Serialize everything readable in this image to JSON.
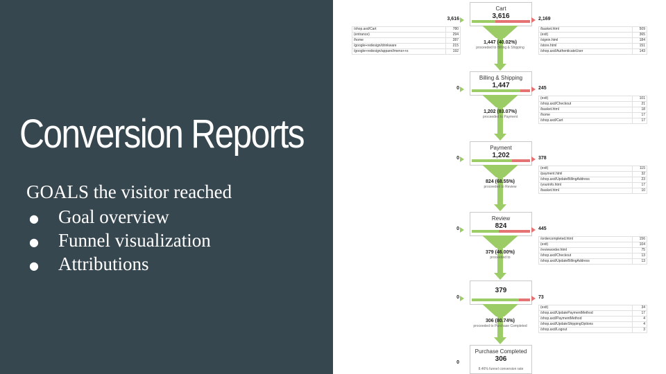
{
  "slide": {
    "title": "Conversion Reports",
    "intro": "GOALS the visitor reached",
    "bullets": [
      "Goal overview",
      "Funnel visualization",
      "Attributions"
    ]
  },
  "colors": {
    "panel": "#37474f",
    "proceed": "#9ccc65",
    "exit": "#e57373"
  },
  "funnel": {
    "steps": [
      {
        "name": "Cart",
        "count": "3,616",
        "entrances": "3,616",
        "exits": "2,169",
        "proceed_fraction": 0.4,
        "progress": "1,447 (40.02%)",
        "progress_label": "proceeded to Billing & Shipping",
        "entrance_sources": [
          {
            "page": "/shop.axd/Cart",
            "value": "780"
          },
          {
            "page": "(entrance)",
            "value": "294"
          },
          {
            "page": "/home",
            "value": "287"
          },
          {
            "page": "/google+redesign/drinkware",
            "value": "215"
          },
          {
            "page": "/google+redesign/apparel/mens++s",
            "value": "192"
          }
        ],
        "exit_destinations": [
          {
            "page": "/basket.html",
            "value": "509"
          },
          {
            "page": "(exit)",
            "value": "365"
          },
          {
            "page": "/signin.html",
            "value": "184"
          },
          {
            "page": "/store.html",
            "value": "151"
          },
          {
            "page": "/shop.axd/AuthenticateUser",
            "value": "143"
          }
        ]
      },
      {
        "name": "Billing & Shipping",
        "count": "1,447",
        "entrances": "0",
        "exits": "245",
        "proceed_fraction": 0.83,
        "progress": "1,202 (83.07%)",
        "progress_label": "proceeded to Payment",
        "entrance_sources": [],
        "exit_destinations": [
          {
            "page": "(exit)",
            "value": "101"
          },
          {
            "page": "/shop.axd/Checkout",
            "value": "21"
          },
          {
            "page": "/basket.html",
            "value": "18"
          },
          {
            "page": "/home",
            "value": "17"
          },
          {
            "page": "/shop.axd/Cart",
            "value": "17"
          }
        ]
      },
      {
        "name": "Payment",
        "count": "1,202",
        "entrances": "0",
        "exits": "378",
        "proceed_fraction": 0.69,
        "progress": "824 (68.55%)",
        "progress_label": "proceeded to Review",
        "entrance_sources": [],
        "exit_destinations": [
          {
            "page": "(exit)",
            "value": "115"
          },
          {
            "page": "/payment.html",
            "value": "32"
          },
          {
            "page": "/shop.axd/UpdateBillingAddress",
            "value": "23"
          },
          {
            "page": "/yourinfo.html",
            "value": "17"
          },
          {
            "page": "/basket.html",
            "value": "10"
          }
        ]
      },
      {
        "name": "Review",
        "count": "824",
        "entrances": "0",
        "exits": "445",
        "proceed_fraction": 0.46,
        "progress": "379 (46.00%)",
        "progress_label": "proceeded to",
        "entrance_sources": [],
        "exit_destinations": [
          {
            "page": "/ordercompleted.html",
            "value": "156"
          },
          {
            "page": "(exit)",
            "value": "104"
          },
          {
            "page": "/revieworder.html",
            "value": "75"
          },
          {
            "page": "/shop.axd/Checkout",
            "value": "13"
          },
          {
            "page": "/shop.axd/UpdateBillingAddress",
            "value": "13"
          }
        ]
      },
      {
        "name": "",
        "count": "379",
        "entrances": "0",
        "exits": "73",
        "proceed_fraction": 0.81,
        "progress": "306 (80.74%)",
        "progress_label": "proceeded to Purchase Completed",
        "entrance_sources": [],
        "exit_destinations": [
          {
            "page": "(exit)",
            "value": "34"
          },
          {
            "page": "/shop.axd/UpdatePaymentMethod",
            "value": "17"
          },
          {
            "page": "/shop.axd/PaymentMethod",
            "value": "4"
          },
          {
            "page": "/shop.axd/UpdateShippingOptions",
            "value": "4"
          },
          {
            "page": "/shop.axd/Logout",
            "value": "3"
          }
        ]
      },
      {
        "name": "Purchase Completed",
        "count": "306",
        "entrances": "0",
        "exits": "",
        "proceed_fraction": null,
        "progress": "",
        "progress_label": "",
        "sub": "8.46% funnel conversion rate",
        "entrance_sources": [],
        "exit_destinations": []
      }
    ]
  }
}
